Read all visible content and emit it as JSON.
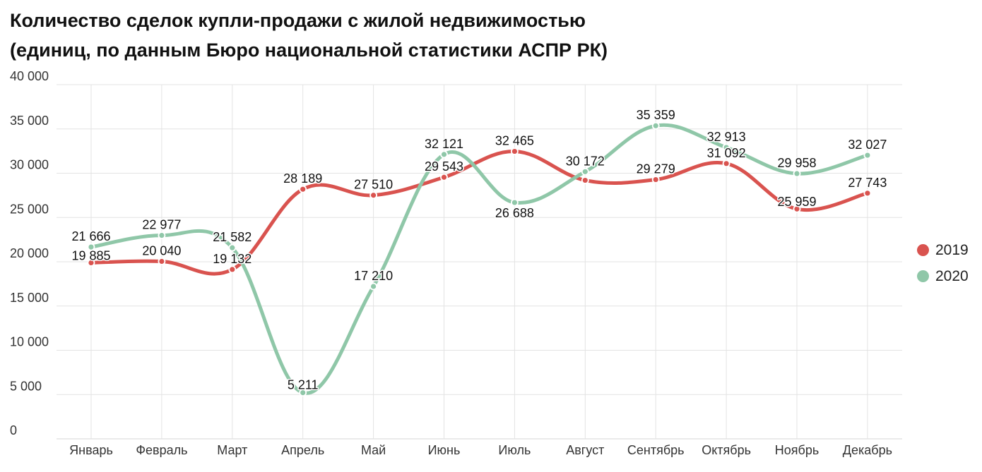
{
  "title_line1": "Количество сделок купли-продажи с жилой недвижимостью",
  "title_line2": "(единиц, по данным Бюро национальной статистики АСПР РК)",
  "chart_data": {
    "type": "line",
    "title": "Количество сделок купли-продажи с жилой недвижимостью (единиц, по данным Бюро национальной статистики АСПР РК)",
    "categories": [
      "Январь",
      "Февраль",
      "Март",
      "Апрель",
      "Май",
      "Июнь",
      "Июль",
      "Август",
      "Сентябрь",
      "Октябрь",
      "Ноябрь",
      "Декабрь"
    ],
    "series": [
      {
        "name": "2019",
        "color": "#d9534f",
        "values": [
          19885,
          20040,
          19132,
          28189,
          27510,
          29543,
          32465,
          29200,
          29279,
          31092,
          25959,
          27743
        ],
        "labels": [
          "19 885",
          "20 040",
          "19 132",
          "28 189",
          "27 510",
          "29 543",
          "32 465",
          "",
          "29 279",
          "31 092",
          "25 959",
          "27 743"
        ]
      },
      {
        "name": "2020",
        "color": "#8fc7a8",
        "values": [
          21666,
          22977,
          21582,
          5211,
          17210,
          32121,
          26688,
          30172,
          35359,
          32913,
          29958,
          32027
        ],
        "labels": [
          "21 666",
          "22 977",
          "21 582",
          "5 211",
          "17 210",
          "32 121",
          "26 688",
          "30 172",
          "35 359",
          "32 913",
          "29 958",
          "32 027"
        ]
      }
    ],
    "y_ticks": [
      0,
      5000,
      10000,
      15000,
      20000,
      25000,
      30000,
      35000,
      40000
    ],
    "y_tick_labels": [
      "0",
      "5 000",
      "10 000",
      "15 000",
      "20 000",
      "25 000",
      "30 000",
      "35 000",
      "40 000"
    ],
    "ylim": [
      0,
      40000
    ],
    "grid": true,
    "legend_position": "right"
  }
}
